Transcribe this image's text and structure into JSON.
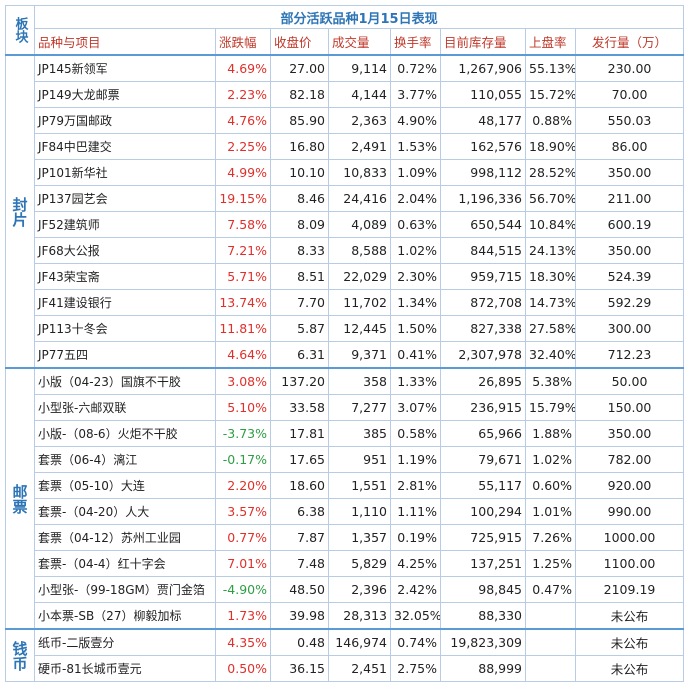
{
  "title": "部分活跃品种1月15日表现",
  "headers": [
    "板块",
    "品种与项目",
    "涨跌幅",
    "收盘价",
    "成交量",
    "换手率",
    "目前库存量",
    "上盘率",
    "发行量（万）"
  ],
  "groups": [
    {
      "label": "封片",
      "rows": [
        [
          "JP145新领军",
          "4.69%",
          "27.00",
          "9,114",
          "0.72%",
          "1,267,906",
          "55.13%",
          "230.00"
        ],
        [
          "JP149大龙邮票",
          "2.23%",
          "82.18",
          "4,144",
          "3.77%",
          "110,055",
          "15.72%",
          "70.00"
        ],
        [
          "JP79万国邮政",
          "4.76%",
          "85.90",
          "2,363",
          "4.90%",
          "48,177",
          "0.88%",
          "550.03"
        ],
        [
          "JF84中巴建交",
          "2.25%",
          "16.80",
          "2,491",
          "1.53%",
          "162,576",
          "18.90%",
          "86.00"
        ],
        [
          "JP101新华社",
          "4.99%",
          "10.10",
          "10,833",
          "1.09%",
          "998,112",
          "28.52%",
          "350.00"
        ],
        [
          "JP137园艺会",
          "19.15%",
          "8.46",
          "24,416",
          "2.04%",
          "1,196,336",
          "56.70%",
          "211.00"
        ],
        [
          "JF52建筑师",
          "7.58%",
          "8.09",
          "4,089",
          "0.63%",
          "650,544",
          "10.84%",
          "600.19"
        ],
        [
          "JF68大公报",
          "7.21%",
          "8.33",
          "8,588",
          "1.02%",
          "844,515",
          "24.13%",
          "350.00"
        ],
        [
          "JF43荣宝斋",
          "5.71%",
          "8.51",
          "22,029",
          "2.30%",
          "959,715",
          "18.30%",
          "524.39"
        ],
        [
          "JF41建设银行",
          "13.74%",
          "7.70",
          "11,702",
          "1.34%",
          "872,708",
          "14.73%",
          "592.29"
        ],
        [
          "JP113十冬会",
          "11.81%",
          "5.87",
          "12,445",
          "1.50%",
          "827,338",
          "27.58%",
          "300.00"
        ],
        [
          "JP77五四",
          "4.64%",
          "6.31",
          "9,371",
          "0.41%",
          "2,307,978",
          "32.40%",
          "712.23"
        ]
      ]
    },
    {
      "label": "邮票",
      "rows": [
        [
          "小版（04-23）国旗不干胶",
          "3.08%",
          "137.20",
          "358",
          "1.33%",
          "26,895",
          "5.38%",
          "50.00"
        ],
        [
          "小型张-六邮双联",
          "5.10%",
          "33.58",
          "7,277",
          "3.07%",
          "236,915",
          "15.79%",
          "150.00"
        ],
        [
          "小版-（08-6）火炬不干胶",
          "-3.73%",
          "17.81",
          "385",
          "0.58%",
          "65,966",
          "1.88%",
          "350.00"
        ],
        [
          "套票（06-4）漓江",
          "-0.17%",
          "17.65",
          "951",
          "1.19%",
          "79,671",
          "1.02%",
          "782.00"
        ],
        [
          "套票（05-10）大连",
          "2.20%",
          "18.60",
          "1,551",
          "2.81%",
          "55,117",
          "0.60%",
          "920.00"
        ],
        [
          "套票-（04-20）人大",
          "3.57%",
          "6.38",
          "1,110",
          "1.11%",
          "100,294",
          "1.01%",
          "990.00"
        ],
        [
          "套票（04-12）苏州工业园",
          "0.77%",
          "7.87",
          "1,357",
          "0.19%",
          "725,915",
          "7.26%",
          "1000.00"
        ],
        [
          "套票-（04-4）红十字会",
          "7.01%",
          "7.48",
          "5,829",
          "4.25%",
          "137,251",
          "1.25%",
          "1100.00"
        ],
        [
          "小型张-（99-18GM）贾门金箔",
          "-4.90%",
          "48.50",
          "2,396",
          "2.42%",
          "98,845",
          "0.47%",
          "2109.19"
        ],
        [
          "小本票-SB（27）柳毅加标",
          "1.73%",
          "39.98",
          "28,313",
          "32.05%",
          "88,330",
          "",
          "未公布"
        ]
      ]
    },
    {
      "label": "钱币",
      "rows": [
        [
          "纸币-二版壹分",
          "4.35%",
          "0.48",
          "146,974",
          "0.74%",
          "19,823,309",
          "",
          "未公布"
        ],
        [
          "硬币-81长城币壹元",
          "0.50%",
          "36.15",
          "2,451",
          "2.75%",
          "88,999",
          "",
          "未公布"
        ]
      ]
    }
  ]
}
